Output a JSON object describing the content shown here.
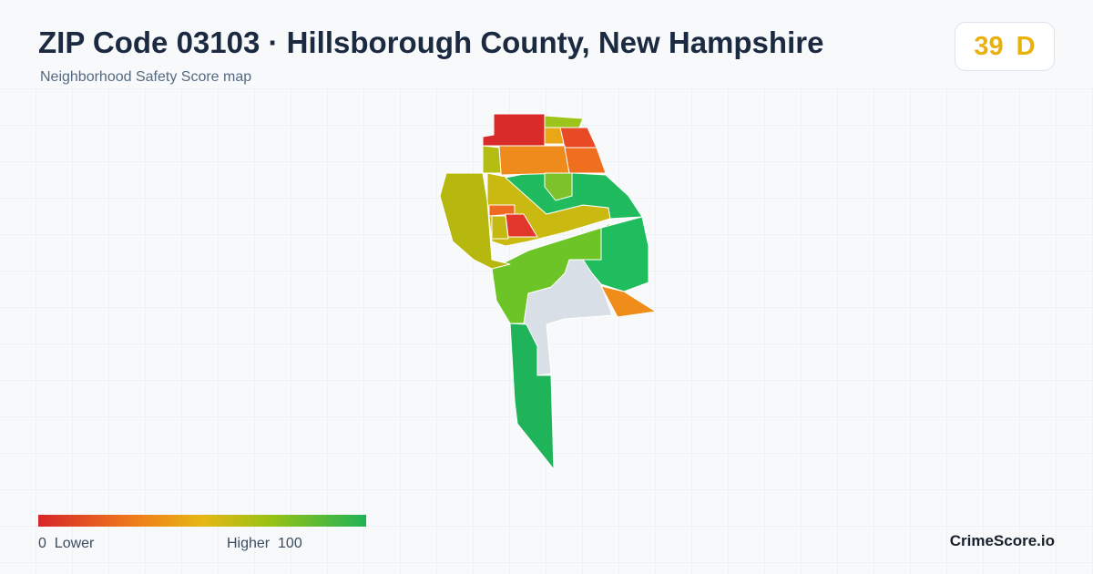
{
  "header": {
    "title": "ZIP Code 03103 · Hillsborough County, New Hampshire",
    "subtitle": "Neighborhood Safety Score map"
  },
  "score": {
    "value": 39,
    "grade": "D"
  },
  "legend": {
    "min": 0,
    "min_label": "Lower",
    "max_label": "Higher",
    "max": 100
  },
  "brand": "CrimeScore.io"
}
